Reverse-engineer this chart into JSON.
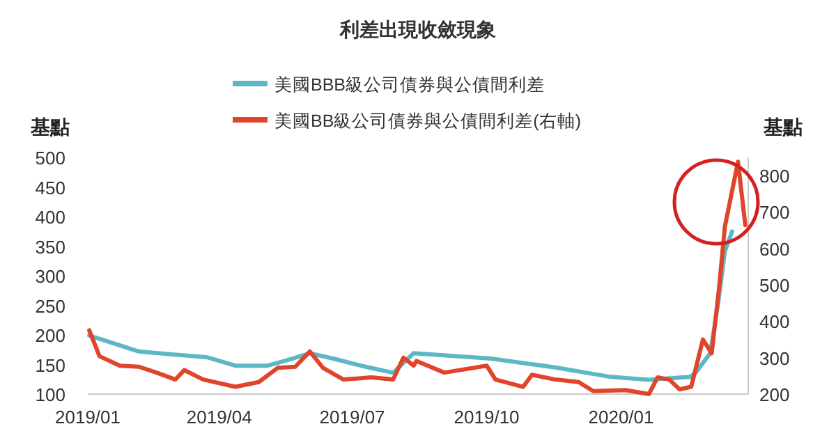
{
  "chart_data": {
    "type": "line",
    "title": "利差出現收斂現象",
    "ylabel": "基點",
    "y2label": "基點",
    "legend": "top",
    "line_style": "solid",
    "xlim": [
      "2019-01-01",
      "2020-03-28"
    ],
    "xticks": [
      {
        "value": "2019-01",
        "label": "2019/01"
      },
      {
        "value": "2019-04",
        "label": "2019/04"
      },
      {
        "value": "2019-07",
        "label": "2019/07"
      },
      {
        "value": "2019-10",
        "label": "2019/10"
      },
      {
        "value": "2020-01",
        "label": "2020/01"
      }
    ],
    "ylim": [
      100,
      500
    ],
    "yticks": [
      100,
      150,
      200,
      250,
      300,
      350,
      400,
      450,
      500
    ],
    "y2lim": [
      200,
      850
    ],
    "y2ticks": [
      200,
      300,
      400,
      500,
      600,
      700,
      800
    ],
    "series": [
      {
        "name": "美國BBB級公司債券與公債間利差",
        "color": "#5bb8c4",
        "x": [
          "2019-01-02",
          "2019-02-05",
          "2019-03-24",
          "2019-04-12",
          "2019-05-04",
          "2019-05-17",
          "2019-06-02",
          "2019-06-18",
          "2019-07-07",
          "2019-07-29",
          "2019-08-12",
          "2019-10-04",
          "2019-11-17",
          "2019-12-25",
          "2020-01-20",
          "2020-02-17",
          "2020-02-21",
          "2020-03-02",
          "2020-03-07",
          "2020-03-12",
          "2020-03-17"
        ],
        "values": [
          199,
          172,
          162,
          148,
          148,
          157,
          169,
          160,
          148,
          136,
          169,
          160,
          145,
          129,
          124,
          129,
          136,
          169,
          247,
          341,
          375
        ]
      },
      {
        "name": "美國BB級公司債券與公債間利差(右軸)",
        "color": "#e0452b",
        "axis": "y2",
        "x": [
          "2019-01-02",
          "2019-01-09",
          "2019-01-23",
          "2019-02-05",
          "2019-02-17",
          "2019-03-02",
          "2019-03-08",
          "2019-03-21",
          "2019-04-12",
          "2019-04-28",
          "2019-05-11",
          "2019-05-23",
          "2019-06-02",
          "2019-06-11",
          "2019-06-25",
          "2019-07-14",
          "2019-07-29",
          "2019-08-05",
          "2019-08-12",
          "2019-08-14",
          "2019-09-02",
          "2019-10-01",
          "2019-10-07",
          "2019-10-26",
          "2019-11-01",
          "2019-11-17",
          "2019-12-03",
          "2019-12-13",
          "2020-01-04",
          "2020-01-20",
          "2020-01-26",
          "2020-02-03",
          "2020-02-10",
          "2020-02-18",
          "2020-02-26",
          "2020-03-03",
          "2020-03-08",
          "2020-03-12",
          "2020-03-21",
          "2020-03-26"
        ],
        "values": [
          375,
          304,
          278,
          275,
          259,
          240,
          266,
          240,
          220,
          233,
          272,
          275,
          317,
          272,
          240,
          246,
          240,
          300,
          278,
          291,
          259,
          278,
          240,
          220,
          253,
          240,
          233,
          208,
          211,
          200,
          246,
          240,
          213,
          220,
          350,
          312,
          490,
          659,
          838,
          664
        ]
      }
    ]
  }
}
